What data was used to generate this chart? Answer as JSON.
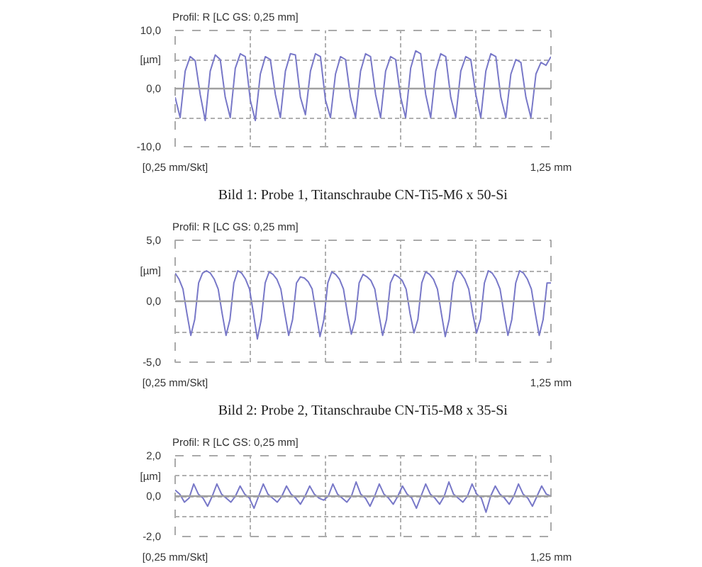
{
  "chart_data": [
    {
      "type": "line",
      "title": "Profil: R [LC GS: 0,25 mm]",
      "subtitle": "Bild 1: Probe 1, Titanschraube CN-Ti5-M6 x 50-Si",
      "xlabel": "[0,25 mm/Skt]",
      "annotations": [
        "1,25 mm"
      ],
      "ylim": [
        -10,
        10
      ],
      "yticks": [
        {
          "value": -10,
          "label": "-10,0"
        },
        {
          "value": -5,
          "label": null
        },
        {
          "value": 0,
          "label": "0,0"
        },
        {
          "value": 5,
          "label": "[µm]"
        },
        {
          "value": 10,
          "label": "10,0"
        }
      ],
      "grid": true,
      "line_style": "solid",
      "marker": "none",
      "ref_lines": [
        {
          "axis": "y",
          "value": 0,
          "color": "#a0a0a0"
        }
      ],
      "categories": [
        null,
        null,
        null,
        null,
        null,
        null,
        null,
        null,
        null,
        null,
        null,
        null,
        null,
        null,
        null,
        null,
        null,
        null,
        null,
        null,
        null,
        null,
        null,
        null,
        null,
        null,
        null,
        null,
        null,
        null,
        null,
        null,
        null,
        null,
        null,
        null,
        null,
        null,
        null,
        null,
        null,
        null,
        null,
        null,
        null,
        null,
        null,
        null,
        null,
        null,
        null,
        null,
        null,
        null,
        null,
        null,
        null,
        null,
        null,
        null,
        null,
        null,
        null,
        null,
        null,
        null,
        null,
        null,
        null,
        null,
        null,
        null,
        null,
        null,
        null,
        null
      ],
      "series": [
        {
          "color": "#7878c8",
          "values": [
            -1.5,
            -5,
            3,
            5.5,
            4.8,
            -1,
            -5.5,
            3,
            5.8,
            5,
            -1.5,
            -5,
            3.5,
            6,
            5.5,
            -2,
            -5.5,
            2.5,
            5.5,
            5,
            -1,
            -5,
            3,
            6,
            5.8,
            -1.5,
            -4.5,
            3,
            6,
            5.5,
            -2,
            -5,
            2.5,
            5.5,
            5,
            -1.5,
            -5,
            3,
            6,
            5.5,
            -1,
            -5,
            3,
            5.5,
            5,
            -1.5,
            -5,
            3.5,
            6.5,
            6,
            -1,
            -5,
            3,
            6,
            5.5,
            -1.5,
            -5,
            3,
            5.5,
            5,
            -1,
            -5,
            3,
            6,
            5.5,
            -1.5,
            -5,
            2.5,
            5,
            4.5,
            -1.5,
            -5,
            2.5,
            4.5,
            4,
            5.5
          ]
        }
      ]
    },
    {
      "type": "line",
      "title": "Profil: R [LC GS: 0,25 mm]",
      "subtitle": "Bild 2: Probe 2, Titanschraube CN-Ti5-M8 x 35-Si",
      "xlabel": "[0,25 mm/Skt]",
      "annotations": [
        "1,25 mm"
      ],
      "ylim": [
        -5,
        5
      ],
      "yticks": [
        {
          "value": -5,
          "label": "-5,0"
        },
        {
          "value": -2.5,
          "label": null
        },
        {
          "value": 0,
          "label": "0,0"
        },
        {
          "value": 2.5,
          "label": "[µm]"
        },
        {
          "value": 5,
          "label": "5,0"
        }
      ],
      "grid": true,
      "line_style": "solid",
      "marker": "none",
      "ref_lines": [
        {
          "axis": "y",
          "value": 0,
          "color": "#a0a0a0"
        }
      ],
      "categories": [
        null,
        null,
        null,
        null,
        null,
        null,
        null,
        null,
        null,
        null,
        null,
        null,
        null,
        null,
        null,
        null,
        null,
        null,
        null,
        null,
        null,
        null,
        null,
        null,
        null,
        null,
        null,
        null,
        null,
        null,
        null,
        null,
        null,
        null,
        null,
        null,
        null,
        null,
        null,
        null,
        null,
        null,
        null,
        null,
        null,
        null,
        null,
        null,
        null,
        null,
        null,
        null,
        null,
        null,
        null,
        null,
        null,
        null,
        null,
        null,
        null,
        null,
        null,
        null,
        null,
        null,
        null,
        null,
        null,
        null,
        null,
        null,
        null,
        null,
        null,
        null,
        null,
        null,
        null,
        null,
        null,
        null,
        null,
        null,
        null,
        null,
        null,
        null,
        null,
        null,
        null,
        null,
        null,
        null,
        null,
        null,
        null
      ],
      "series": [
        {
          "color": "#7878c8",
          "values": [
            2.3,
            1.8,
            1.0,
            -1.0,
            -2.8,
            -1.5,
            1.5,
            2.3,
            2.5,
            2.3,
            1.8,
            1.0,
            -1.0,
            -2.8,
            -1.5,
            1.5,
            2.5,
            2.3,
            1.8,
            1.0,
            -1.0,
            -3.1,
            -1.5,
            1.5,
            2.4,
            2.2,
            1.8,
            1.0,
            -1.0,
            -2.8,
            -1.5,
            1.5,
            2.0,
            1.9,
            1.6,
            1.0,
            -1.0,
            -2.9,
            -1.5,
            1.5,
            2.4,
            2.2,
            1.8,
            1.0,
            -1.0,
            -2.7,
            -1.5,
            1.5,
            2.2,
            2.0,
            1.7,
            1.0,
            -1.0,
            -2.8,
            -1.5,
            1.5,
            2.2,
            2.0,
            1.7,
            1.0,
            -1.0,
            -2.6,
            -1.5,
            1.5,
            2.4,
            2.2,
            1.8,
            1.0,
            -1.0,
            -2.9,
            -1.5,
            1.5,
            2.5,
            2.3,
            1.8,
            1.0,
            -1.0,
            -2.6,
            -1.5,
            1.5,
            2.5,
            2.3,
            1.8,
            1.0,
            -1.0,
            -2.8,
            -1.5,
            1.5,
            2.5,
            2.3,
            1.8,
            1.0,
            -1.0,
            -2.8,
            -1.5,
            1.5,
            1.5
          ]
        }
      ]
    },
    {
      "type": "line",
      "title": "Profil: R [LC GS: 0,25 mm]",
      "xlabel": "[0,25 mm/Skt]",
      "annotations": [
        "1,25 mm"
      ],
      "ylim": [
        -2,
        2
      ],
      "yticks": [
        {
          "value": -2,
          "label": "-2,0"
        },
        {
          "value": -1,
          "label": null
        },
        {
          "value": 0,
          "label": "0,0"
        },
        {
          "value": 1,
          "label": "[µm]"
        },
        {
          "value": 2,
          "label": "2,0"
        }
      ],
      "grid": true,
      "line_style": "solid",
      "marker": "none",
      "ref_lines": [
        {
          "axis": "y",
          "value": 0,
          "color": "#a0a0a0"
        }
      ],
      "categories": [
        null,
        null,
        null,
        null,
        null,
        null,
        null,
        null,
        null,
        null,
        null,
        null,
        null,
        null,
        null,
        null,
        null,
        null,
        null,
        null,
        null,
        null,
        null,
        null,
        null,
        null,
        null,
        null,
        null,
        null,
        null,
        null,
        null,
        null,
        null,
        null,
        null,
        null,
        null,
        null,
        null,
        null,
        null,
        null,
        null,
        null,
        null,
        null,
        null,
        null,
        null,
        null,
        null,
        null,
        null,
        null,
        null,
        null,
        null,
        null,
        null,
        null,
        null,
        null,
        null,
        null,
        null,
        null,
        null,
        null,
        null,
        null,
        null,
        null,
        null,
        null,
        null,
        null,
        null,
        null,
        null,
        null
      ],
      "series": [
        {
          "color": "#7878c8",
          "values": [
            0.3,
            0.1,
            -0.3,
            -0.1,
            0.6,
            0.1,
            -0.1,
            -0.5,
            0,
            0.6,
            0.1,
            -0.1,
            -0.3,
            0,
            0.5,
            0.1,
            -0.1,
            -0.6,
            0,
            0.6,
            0.1,
            -0.1,
            -0.3,
            0,
            0.5,
            0.1,
            -0.1,
            -0.4,
            0,
            0.5,
            0.1,
            -0.1,
            -0.2,
            0,
            0.6,
            0.1,
            -0.1,
            -0.3,
            0,
            0.7,
            0.1,
            -0.1,
            -0.5,
            0,
            0.6,
            0.1,
            -0.1,
            -0.4,
            0,
            0.5,
            0.1,
            -0.1,
            -0.6,
            0,
            0.6,
            0.1,
            -0.1,
            -0.4,
            0,
            0.7,
            0.1,
            -0.1,
            -0.3,
            0,
            0.6,
            0.1,
            -0.1,
            -0.8,
            0,
            0.5,
            0.1,
            -0.1,
            -0.4,
            0,
            0.6,
            0.1,
            -0.1,
            -0.5,
            0,
            0.5,
            0.1,
            0
          ]
        }
      ]
    }
  ]
}
